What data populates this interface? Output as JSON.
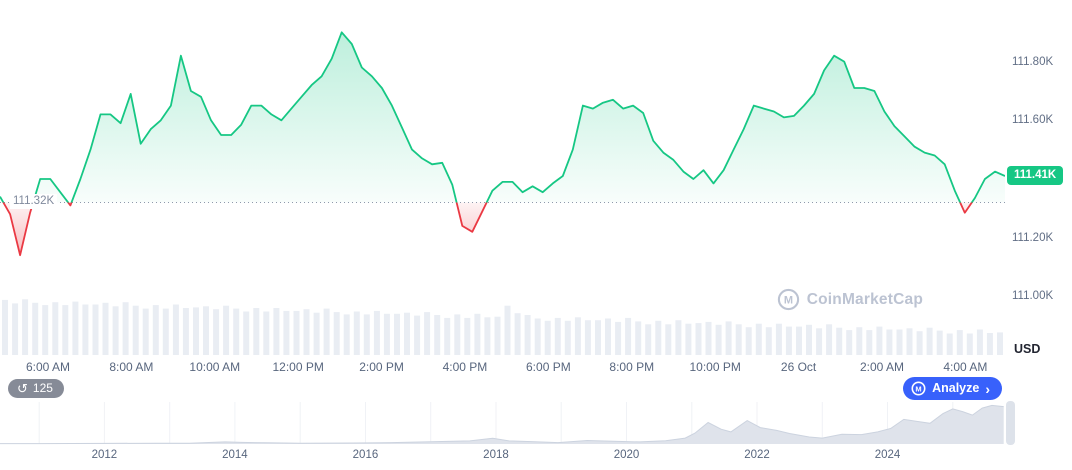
{
  "ui": {
    "open_price_label": "111.32K",
    "current_price_badge": "111.41K",
    "currency_label": "USD",
    "watermark_text": "CoinMarketCap",
    "logo_letter": "M",
    "history_count": "125",
    "history_icon": "↺",
    "analyze_label": "Analyze",
    "analyze_chevron": "›"
  },
  "colors": {
    "up_green": "#16c784",
    "down_red": "#ea3943",
    "analyze_blue": "#3861fb",
    "axis_text": "#616e85",
    "volume_bar": "#e9edf3",
    "minimap_fill": "#dfe3eb",
    "minimap_stroke": "#ccd3df",
    "baseline_dotted": "#8e99ab"
  },
  "chart_data": {
    "type": "area",
    "title": "Intraday price with baseline (green above 111.32K, red below), volume bars and multi-year minimap",
    "legend_position": "none",
    "grid": false,
    "price_series": {
      "name": "Price",
      "unit": "K USD",
      "baseline": 111.32,
      "current": 111.41,
      "ylim": [
        110.8,
        112.01
      ],
      "x_start_hour": 4.85,
      "x_end_hour": 28.95,
      "prices": [
        111.34,
        111.28,
        111.14,
        111.285,
        111.4,
        111.4,
        111.355,
        111.31,
        111.4,
        111.5,
        111.62,
        111.62,
        111.59,
        111.69,
        111.52,
        111.57,
        111.6,
        111.65,
        111.82,
        111.7,
        111.68,
        111.6,
        111.55,
        111.55,
        111.585,
        111.65,
        111.65,
        111.62,
        111.6,
        111.64,
        111.68,
        111.72,
        111.75,
        111.81,
        111.9,
        111.86,
        111.78,
        111.75,
        111.71,
        111.65,
        111.575,
        111.5,
        111.47,
        111.45,
        111.455,
        111.38,
        111.24,
        111.22,
        111.29,
        111.36,
        111.39,
        111.39,
        111.355,
        111.375,
        111.355,
        111.385,
        111.41,
        111.5,
        111.65,
        111.64,
        111.66,
        111.67,
        111.64,
        111.65,
        111.625,
        111.53,
        111.49,
        111.465,
        111.425,
        111.4,
        111.43,
        111.385,
        111.43,
        111.5,
        111.57,
        111.65,
        111.64,
        111.63,
        111.61,
        111.615,
        111.65,
        111.69,
        111.77,
        111.82,
        111.8,
        111.71,
        111.71,
        111.7,
        111.63,
        111.58,
        111.545,
        111.51,
        111.49,
        111.48,
        111.45,
        111.36,
        111.285,
        111.335,
        111.4,
        111.425,
        111.41
      ]
    },
    "y_ticks": [
      {
        "label": "111.80K",
        "price": 111.8
      },
      {
        "label": "111.60K",
        "price": 111.6
      },
      {
        "label": "111.20K",
        "price": 111.2
      },
      {
        "label": "111.00K",
        "price": 111.0
      }
    ],
    "x_ticks": [
      {
        "label": "6:00 AM",
        "hour": 6
      },
      {
        "label": "8:00 AM",
        "hour": 8
      },
      {
        "label": "10:00 AM",
        "hour": 10
      },
      {
        "label": "12:00 PM",
        "hour": 12
      },
      {
        "label": "2:00 PM",
        "hour": 14
      },
      {
        "label": "4:00 PM",
        "hour": 16
      },
      {
        "label": "6:00 PM",
        "hour": 18
      },
      {
        "label": "8:00 PM",
        "hour": 20
      },
      {
        "label": "10:00 PM",
        "hour": 22
      },
      {
        "label": "26 Oct",
        "hour": 24
      },
      {
        "label": "2:00 AM",
        "hour": 26
      },
      {
        "label": "4:00 AM",
        "hour": 28
      }
    ],
    "volume": {
      "values_rel": [
        0.95,
        0.89,
        0.96,
        0.9,
        0.86,
        0.91,
        0.86,
        0.92,
        0.87,
        0.87,
        0.9,
        0.84,
        0.91,
        0.85,
        0.8,
        0.86,
        0.8,
        0.87,
        0.81,
        0.82,
        0.84,
        0.79,
        0.85,
        0.8,
        0.75,
        0.81,
        0.75,
        0.81,
        0.76,
        0.76,
        0.79,
        0.73,
        0.8,
        0.74,
        0.7,
        0.75,
        0.7,
        0.76,
        0.71,
        0.71,
        0.73,
        0.68,
        0.74,
        0.69,
        0.64,
        0.7,
        0.64,
        0.71,
        0.65,
        0.66,
        0.85,
        0.72,
        0.69,
        0.63,
        0.59,
        0.64,
        0.59,
        0.65,
        0.6,
        0.6,
        0.63,
        0.57,
        0.64,
        0.58,
        0.53,
        0.59,
        0.53,
        0.6,
        0.54,
        0.55,
        0.57,
        0.52,
        0.58,
        0.53,
        0.48,
        0.54,
        0.48,
        0.54,
        0.49,
        0.49,
        0.52,
        0.46,
        0.53,
        0.47,
        0.43,
        0.48,
        0.43,
        0.49,
        0.44,
        0.44,
        0.46,
        0.41,
        0.47,
        0.42,
        0.37,
        0.43,
        0.37,
        0.44,
        0.38,
        0.39
      ]
    },
    "minimap": {
      "x_start_year": 2010.4,
      "x_end_year": 2025.8,
      "year_ticks": [
        2012,
        2014,
        2016,
        2018,
        2020,
        2022,
        2024
      ],
      "values_rel": [
        [
          2010.4,
          0.01
        ],
        [
          2011,
          0.01
        ],
        [
          2012,
          0.015
        ],
        [
          2012.8,
          0.02
        ],
        [
          2013.3,
          0.02
        ],
        [
          2013.85,
          0.055
        ],
        [
          2014.1,
          0.04
        ],
        [
          2014.5,
          0.03
        ],
        [
          2015,
          0.02
        ],
        [
          2015.8,
          0.025
        ],
        [
          2016.4,
          0.035
        ],
        [
          2017,
          0.06
        ],
        [
          2017.6,
          0.08
        ],
        [
          2017.95,
          0.145
        ],
        [
          2018.2,
          0.08
        ],
        [
          2018.6,
          0.06
        ],
        [
          2018.95,
          0.035
        ],
        [
          2019.4,
          0.09
        ],
        [
          2019.8,
          0.07
        ],
        [
          2020.2,
          0.055
        ],
        [
          2020.6,
          0.085
        ],
        [
          2020.9,
          0.15
        ],
        [
          2021.05,
          0.28
        ],
        [
          2021.25,
          0.55
        ],
        [
          2021.45,
          0.38
        ],
        [
          2021.6,
          0.31
        ],
        [
          2021.85,
          0.6
        ],
        [
          2022.05,
          0.42
        ],
        [
          2022.3,
          0.35
        ],
        [
          2022.5,
          0.27
        ],
        [
          2022.8,
          0.18
        ],
        [
          2023.0,
          0.15
        ],
        [
          2023.3,
          0.25
        ],
        [
          2023.6,
          0.24
        ],
        [
          2023.85,
          0.31
        ],
        [
          2024.05,
          0.4
        ],
        [
          2024.25,
          0.63
        ],
        [
          2024.45,
          0.58
        ],
        [
          2024.65,
          0.53
        ],
        [
          2024.85,
          0.78
        ],
        [
          2025.0,
          0.9
        ],
        [
          2025.15,
          0.83
        ],
        [
          2025.3,
          0.74
        ],
        [
          2025.45,
          0.92
        ],
        [
          2025.6,
          0.99
        ],
        [
          2025.78,
          0.96
        ]
      ]
    }
  }
}
